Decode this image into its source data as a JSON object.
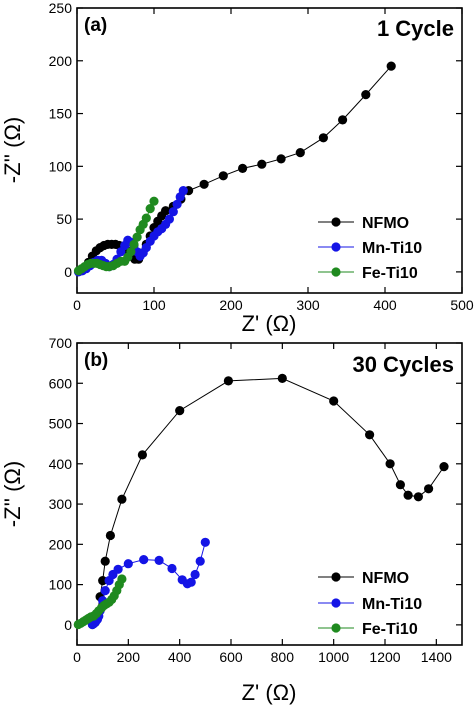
{
  "chart_data": [
    {
      "type": "scatter",
      "panel_tag": "(a)",
      "title": "1 Cycle",
      "xlabel": "Z' (Ω)",
      "ylabel": "-Z'' (Ω)",
      "xlim": [
        0,
        500
      ],
      "ylim": [
        -20,
        250
      ],
      "xticks": [
        0,
        100,
        200,
        300,
        400,
        500
      ],
      "yticks": [
        0,
        50,
        100,
        150,
        200,
        250
      ],
      "legend_position": "lower-right",
      "series": [
        {
          "name": "NFMO",
          "color": "#000000",
          "points": [
            [
              5,
              1
            ],
            [
              10,
              3
            ],
            [
              15,
              9
            ],
            [
              20,
              15
            ],
            [
              25,
              20
            ],
            [
              30,
              23
            ],
            [
              35,
              25
            ],
            [
              40,
              26
            ],
            [
              45,
              26
            ],
            [
              50,
              26
            ],
            [
              55,
              25
            ],
            [
              60,
              23
            ],
            [
              65,
              20
            ],
            [
              70,
              16
            ],
            [
              75,
              12
            ],
            [
              80,
              12
            ],
            [
              85,
              18
            ],
            [
              90,
              26
            ],
            [
              95,
              34
            ],
            [
              100,
              42
            ],
            [
              105,
              48
            ],
            [
              110,
              53
            ],
            [
              115,
              58
            ],
            [
              125,
              62
            ],
            [
              135,
              69
            ],
            [
              145,
              77
            ],
            [
              165,
              83
            ],
            [
              190,
              91
            ],
            [
              215,
              98
            ],
            [
              240,
              102
            ],
            [
              265,
              107
            ],
            [
              290,
              113
            ],
            [
              320,
              127
            ],
            [
              345,
              144
            ],
            [
              375,
              168
            ],
            [
              408,
              195
            ]
          ]
        },
        {
          "name": "Mn-Ti10",
          "color": "#1414e6",
          "points": [
            [
              2,
              0
            ],
            [
              7,
              1
            ],
            [
              12,
              3
            ],
            [
              17,
              6
            ],
            [
              22,
              9
            ],
            [
              27,
              11
            ],
            [
              32,
              11
            ],
            [
              37,
              8
            ],
            [
              42,
              5
            ],
            [
              47,
              7
            ],
            [
              52,
              12
            ],
            [
              57,
              19
            ],
            [
              62,
              25
            ],
            [
              66,
              30
            ],
            [
              70,
              28
            ],
            [
              74,
              25
            ],
            [
              78,
              19
            ],
            [
              82,
              15
            ],
            [
              86,
              18
            ],
            [
              90,
              23
            ],
            [
              95,
              29
            ],
            [
              100,
              34
            ],
            [
              105,
              38
            ],
            [
              110,
              41
            ],
            [
              115,
              45
            ],
            [
              120,
              50
            ],
            [
              125,
              57
            ],
            [
              130,
              64
            ],
            [
              134,
              71
            ],
            [
              138,
              77
            ]
          ]
        },
        {
          "name": "Fe-Ti10",
          "color": "#1f8a1f",
          "points": [
            [
              2,
              1
            ],
            [
              6,
              3
            ],
            [
              10,
              5
            ],
            [
              14,
              7
            ],
            [
              18,
              8
            ],
            [
              22,
              8
            ],
            [
              26,
              8
            ],
            [
              30,
              7
            ],
            [
              34,
              6
            ],
            [
              38,
              5
            ],
            [
              42,
              5
            ],
            [
              47,
              6
            ],
            [
              52,
              8
            ],
            [
              57,
              10
            ],
            [
              62,
              10
            ],
            [
              66,
              14
            ],
            [
              70,
              19
            ],
            [
              74,
              26
            ],
            [
              78,
              33
            ],
            [
              82,
              40
            ],
            [
              86,
              45
            ],
            [
              90,
              51
            ],
            [
              95,
              60
            ],
            [
              100,
              67
            ]
          ]
        }
      ]
    },
    {
      "type": "scatter",
      "panel_tag": "(b)",
      "title": "30 Cycles",
      "xlabel": "Z' (Ω)",
      "ylabel": "-Z'' (Ω)",
      "xlim": [
        0,
        1500
      ],
      "ylim": [
        -50,
        700
      ],
      "xticks": [
        0,
        200,
        400,
        600,
        800,
        1000,
        1200,
        1400
      ],
      "yticks": [
        0,
        100,
        200,
        300,
        400,
        500,
        600,
        700
      ],
      "legend_position": "lower-right",
      "series": [
        {
          "name": "NFMO",
          "color": "#000000",
          "points": [
            [
              60,
              1
            ],
            [
              70,
              6
            ],
            [
              80,
              30
            ],
            [
              90,
              70
            ],
            [
              100,
              110
            ],
            [
              110,
              158
            ],
            [
              130,
              222
            ],
            [
              175,
              312
            ],
            [
              255,
              422
            ],
            [
              400,
              532
            ],
            [
              590,
              606
            ],
            [
              800,
              612
            ],
            [
              1000,
              556
            ],
            [
              1140,
              472
            ],
            [
              1220,
              400
            ],
            [
              1260,
              348
            ],
            [
              1290,
              322
            ],
            [
              1330,
              318
            ],
            [
              1370,
              338
            ],
            [
              1430,
              393
            ]
          ]
        },
        {
          "name": "Mn-Ti10",
          "color": "#1414e6",
          "points": [
            [
              60,
              1
            ],
            [
              65,
              3
            ],
            [
              70,
              6
            ],
            [
              75,
              10
            ],
            [
              80,
              14
            ],
            [
              85,
              22
            ],
            [
              90,
              35
            ],
            [
              100,
              60
            ],
            [
              110,
              85
            ],
            [
              125,
              110
            ],
            [
              140,
              125
            ],
            [
              160,
              138
            ],
            [
              200,
              152
            ],
            [
              260,
              162
            ],
            [
              320,
              160
            ],
            [
              370,
              140
            ],
            [
              410,
              112
            ],
            [
              430,
              102
            ],
            [
              445,
              106
            ],
            [
              460,
              125
            ],
            [
              480,
              158
            ],
            [
              500,
              205
            ]
          ]
        },
        {
          "name": "Fe-Ti10",
          "color": "#1f8a1f",
          "points": [
            [
              5,
              1
            ],
            [
              15,
              4
            ],
            [
              25,
              8
            ],
            [
              35,
              12
            ],
            [
              45,
              16
            ],
            [
              55,
              20
            ],
            [
              65,
              22
            ],
            [
              75,
              28
            ],
            [
              85,
              35
            ],
            [
              95,
              42
            ],
            [
              105,
              48
            ],
            [
              115,
              52
            ],
            [
              125,
              56
            ],
            [
              135,
              63
            ],
            [
              145,
              72
            ],
            [
              155,
              85
            ],
            [
              165,
              100
            ],
            [
              175,
              114
            ]
          ]
        }
      ]
    }
  ]
}
